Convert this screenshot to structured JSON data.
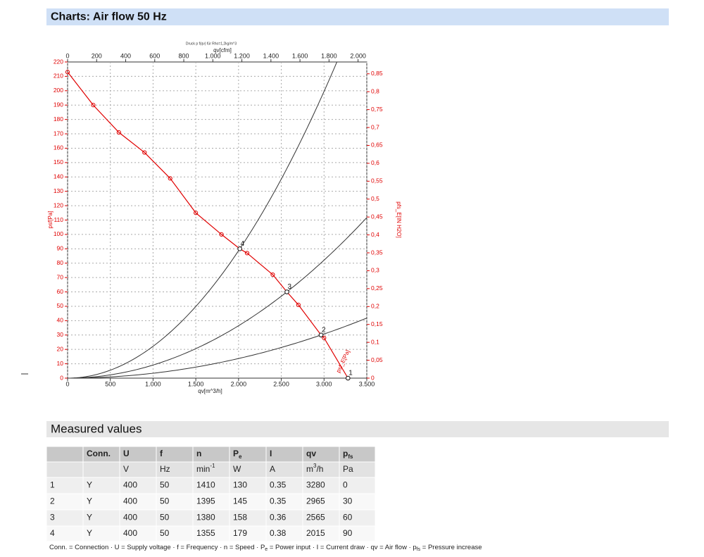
{
  "header": {
    "title": "Charts: Air flow 50 Hz"
  },
  "chart_data": {
    "type": "line",
    "subtitle": "Druck p f(qv) für Rho=1,2kg/m^3",
    "xlabel": "qv[m^3/h]",
    "x2label": "qv[cfm]",
    "ylabel": "psf[Pa]",
    "y2label": "pfs_E[IN H2O]",
    "xlim": [
      0,
      3500
    ],
    "xticks": [
      0,
      500,
      {
        "value": 1000,
        "label": "1.000"
      },
      {
        "value": 1500,
        "label": "1.500"
      },
      {
        "value": 2000,
        "label": "2.000"
      },
      {
        "value": 2500,
        "label": "2.500"
      },
      {
        "value": 3000,
        "label": "3.000"
      },
      {
        "value": 3500,
        "label": "3.500"
      }
    ],
    "x2lim": [
      0,
      2060
    ],
    "x2ticks": [
      0,
      200,
      400,
      600,
      800,
      {
        "value": 1000,
        "label": "1.000"
      },
      {
        "value": 1200,
        "label": "1.200"
      },
      {
        "value": 1400,
        "label": "1.400"
      },
      {
        "value": 1600,
        "label": "1.600"
      },
      {
        "value": 1800,
        "label": "1.800"
      },
      {
        "value": 2000,
        "label": "2.000"
      }
    ],
    "ylim": [
      0,
      220
    ],
    "yticks": [
      0,
      10,
      20,
      30,
      40,
      50,
      60,
      70,
      80,
      90,
      100,
      110,
      120,
      130,
      140,
      150,
      160,
      170,
      180,
      190,
      200,
      210,
      220
    ],
    "y2lim": [
      0,
      0.883
    ],
    "y2ticks": [
      0,
      {
        "value": 0.05,
        "label": "0,05"
      },
      {
        "value": 0.1,
        "label": "0,1"
      },
      {
        "value": 0.15,
        "label": "0,15"
      },
      {
        "value": 0.2,
        "label": "0,2"
      },
      {
        "value": 0.25,
        "label": "0,25"
      },
      {
        "value": 0.3,
        "label": "0,3"
      },
      {
        "value": 0.35,
        "label": "0,35"
      },
      {
        "value": 0.4,
        "label": "0,4"
      },
      {
        "value": 0.45,
        "label": "0,45"
      },
      {
        "value": 0.5,
        "label": "0,5"
      },
      {
        "value": 0.55,
        "label": "0,55"
      },
      {
        "value": 0.6,
        "label": "0,6"
      },
      {
        "value": 0.65,
        "label": "0,65"
      },
      {
        "value": 0.7,
        "label": "0,7"
      },
      {
        "value": 0.75,
        "label": "0,75"
      },
      {
        "value": 0.8,
        "label": "0,8"
      },
      {
        "value": 0.85,
        "label": "0,85"
      }
    ],
    "grid": true,
    "series": [
      {
        "name": "psf_E[Pa]",
        "color": "#e00000",
        "x": [
          0,
          300,
          600,
          900,
          1200,
          1500,
          1800,
          2015,
          2100,
          2400,
          2565,
          2700,
          2965,
          3000,
          3280
        ],
        "values": [
          213,
          190,
          171,
          157,
          139,
          115,
          100,
          90,
          87,
          72,
          60,
          51,
          30,
          28,
          0
        ]
      }
    ],
    "operating_points": [
      {
        "name": "1",
        "x": 3280,
        "y": 0
      },
      {
        "name": "2",
        "x": 2965,
        "y": 30
      },
      {
        "name": "3",
        "x": 2565,
        "y": 60
      },
      {
        "name": "4",
        "x": 2015,
        "y": 90
      }
    ],
    "system_curve_color": "#333333"
  },
  "table": {
    "title": "Measured values",
    "header": [
      null,
      "Conn.",
      "U",
      "f",
      "n",
      {
        "text": "P",
        "sub": "e"
      },
      "I",
      "qv",
      {
        "text": "p",
        "sub": "fs"
      }
    ],
    "units": [
      null,
      null,
      "V",
      "Hz",
      {
        "text": "min",
        "sup": "-1"
      },
      "W",
      "A",
      {
        "text": "m",
        "sup": "3",
        "after": "/h"
      },
      "Pa"
    ],
    "rows": [
      [
        "1",
        "Y",
        "400",
        "50",
        "1410",
        "130",
        "0.35",
        "3280",
        "0"
      ],
      [
        "2",
        "Y",
        "400",
        "50",
        "1395",
        "145",
        "0.35",
        "2965",
        "30"
      ],
      [
        "3",
        "Y",
        "400",
        "50",
        "1380",
        "158",
        "0.36",
        "2565",
        "60"
      ],
      [
        "4",
        "Y",
        "400",
        "50",
        "1355",
        "179",
        "0.38",
        "2015",
        "90"
      ]
    ]
  },
  "footnote": [
    {
      "text": "Conn. = Connection · U = Supply voltage · f = Frequency · n = Speed · P"
    },
    {
      "sub": "e"
    },
    {
      "text": " = Power input · I = Current draw · qv = Air flow · p"
    },
    {
      "sub": "fs"
    },
    {
      "text": " = Pressure increase"
    }
  ]
}
